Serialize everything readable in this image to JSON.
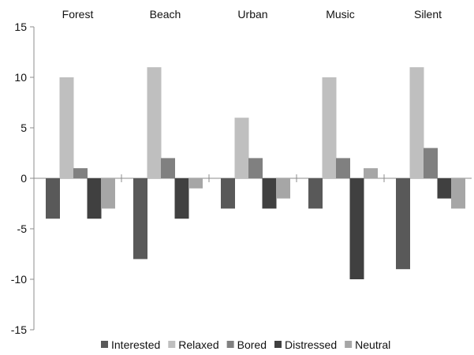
{
  "chart_data": {
    "type": "bar",
    "title": "",
    "xlabel": "",
    "ylabel": "",
    "categories": [
      "Forest",
      "Beach",
      "Urban",
      "Music",
      "Silent"
    ],
    "ylim": [
      -15,
      15
    ],
    "yticks": [
      15,
      10,
      5,
      0,
      -5,
      -10,
      -15
    ],
    "grid": false,
    "legend_position": "bottom",
    "series": [
      {
        "name": "Interested",
        "color": "#595959",
        "values": [
          -4,
          -8,
          -3,
          -3,
          -9
        ]
      },
      {
        "name": "Relaxed",
        "color": "#bfbfbf",
        "values": [
          10,
          11,
          6,
          10,
          11
        ]
      },
      {
        "name": "Bored",
        "color": "#808080",
        "values": [
          1,
          2,
          2,
          2,
          3
        ]
      },
      {
        "name": "Distressed",
        "color": "#404040",
        "values": [
          -4,
          -4,
          -3,
          -10,
          -2
        ]
      },
      {
        "name": "Neutral",
        "color": "#a6a6a6",
        "values": [
          -3,
          -1,
          -2,
          1,
          -3
        ]
      }
    ]
  }
}
